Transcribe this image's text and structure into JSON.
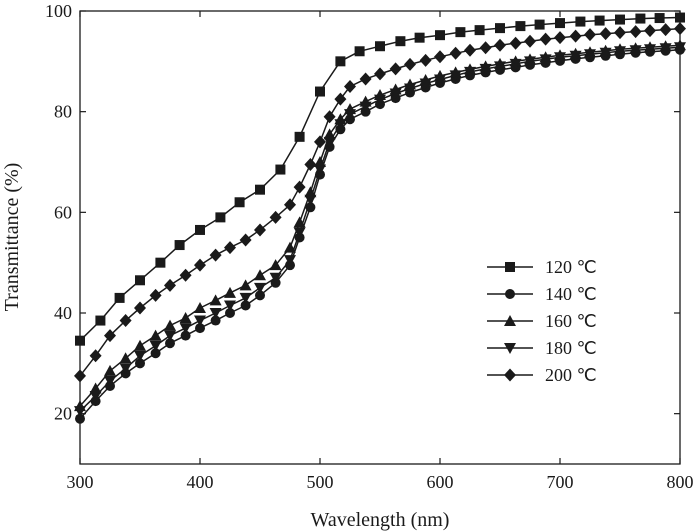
{
  "chart_data": {
    "type": "line",
    "xlabel": "Wavelength (nm)",
    "ylabel": "Transmittance (%)",
    "xlim": [
      300,
      800
    ],
    "ylim": [
      10,
      100
    ],
    "xticks": [
      300,
      400,
      500,
      600,
      700,
      800
    ],
    "yticks": [
      20,
      40,
      60,
      80,
      100
    ],
    "grid": false,
    "legend_position": "center-right",
    "series": [
      {
        "name": "120 ℃",
        "marker": "square",
        "x": [
          300,
          317,
          333,
          350,
          367,
          383,
          400,
          417,
          433,
          450,
          467,
          483,
          500,
          517,
          533,
          550,
          567,
          583,
          600,
          617,
          633,
          650,
          667,
          683,
          700,
          717,
          733,
          750,
          767,
          783,
          800
        ],
        "y": [
          34.5,
          38.5,
          43,
          46.5,
          50,
          53.5,
          56.5,
          59,
          62,
          64.5,
          68.5,
          75,
          84,
          90,
          92,
          93,
          94,
          94.7,
          95.2,
          95.8,
          96.2,
          96.6,
          97,
          97.3,
          97.6,
          97.9,
          98.1,
          98.3,
          98.5,
          98.6,
          98.7
        ]
      },
      {
        "name": "140 ℃",
        "marker": "circle",
        "x": [
          300,
          313,
          325,
          338,
          350,
          363,
          375,
          388,
          400,
          413,
          425,
          438,
          450,
          463,
          475,
          483,
          492,
          500,
          508,
          517,
          525,
          538,
          550,
          563,
          575,
          588,
          600,
          613,
          625,
          638,
          650,
          663,
          675,
          688,
          700,
          713,
          725,
          738,
          750,
          763,
          775,
          788,
          800
        ],
        "y": [
          19,
          22.5,
          25.5,
          28,
          30,
          32,
          34,
          35.5,
          37,
          38.5,
          40,
          41.5,
          43.5,
          46,
          49.5,
          55,
          61,
          67.5,
          73,
          76.5,
          78.5,
          80,
          81.5,
          82.7,
          83.8,
          84.8,
          85.7,
          86.5,
          87.2,
          87.8,
          88.3,
          88.8,
          89.3,
          89.7,
          90.1,
          90.5,
          90.8,
          91.1,
          91.4,
          91.7,
          91.9,
          92.1,
          92.3
        ]
      },
      {
        "name": "160 ℃",
        "marker": "triangle-up",
        "x": [
          300,
          313,
          325,
          338,
          350,
          363,
          375,
          388,
          400,
          413,
          425,
          438,
          450,
          463,
          475,
          483,
          492,
          500,
          508,
          517,
          525,
          538,
          550,
          563,
          575,
          588,
          600,
          613,
          625,
          638,
          650,
          663,
          675,
          688,
          700,
          713,
          725,
          738,
          750,
          763,
          775,
          788,
          800
        ],
        "y": [
          21.5,
          25,
          28.5,
          31,
          33.5,
          35.5,
          37.5,
          39,
          41,
          42.5,
          44,
          45.5,
          47.5,
          49.5,
          53,
          58,
          64,
          70,
          75.5,
          78.5,
          80.5,
          82,
          83.3,
          84.4,
          85.4,
          86.3,
          87.1,
          87.8,
          88.4,
          89,
          89.5,
          90,
          90.4,
          90.8,
          91.2,
          91.5,
          91.8,
          92.1,
          92.4,
          92.6,
          92.8,
          93,
          93.2
        ]
      },
      {
        "name": "180 ℃",
        "marker": "triangle-down",
        "x": [
          300,
          313,
          325,
          338,
          350,
          363,
          375,
          388,
          400,
          413,
          425,
          438,
          450,
          463,
          475,
          483,
          492,
          500,
          508,
          517,
          525,
          538,
          550,
          563,
          575,
          588,
          600,
          613,
          625,
          638,
          650,
          663,
          675,
          688,
          700,
          713,
          725,
          738,
          750,
          763,
          775,
          788,
          800
        ],
        "y": [
          20.5,
          23.5,
          26.5,
          29,
          31.5,
          33.5,
          35.5,
          37,
          38.5,
          40,
          41.5,
          43,
          45,
          47,
          50.5,
          56,
          62.5,
          68.5,
          74,
          77.5,
          79.5,
          81,
          82.4,
          83.6,
          84.6,
          85.6,
          86.4,
          87.2,
          87.9,
          88.5,
          89,
          89.5,
          90,
          90.4,
          90.8,
          91.1,
          91.4,
          91.7,
          92,
          92.2,
          92.4,
          92.6,
          92.8
        ]
      },
      {
        "name": "200 ℃",
        "marker": "diamond",
        "x": [
          300,
          313,
          325,
          338,
          350,
          363,
          375,
          388,
          400,
          413,
          425,
          438,
          450,
          463,
          475,
          483,
          492,
          500,
          508,
          517,
          525,
          538,
          550,
          563,
          575,
          588,
          600,
          613,
          625,
          638,
          650,
          663,
          675,
          688,
          700,
          713,
          725,
          738,
          750,
          763,
          775,
          788,
          800
        ],
        "y": [
          27.5,
          31.5,
          35.5,
          38.5,
          41,
          43.5,
          45.5,
          47.5,
          49.5,
          51.5,
          53,
          54.5,
          56.5,
          59,
          61.5,
          65,
          69.5,
          74,
          79,
          82.5,
          85,
          86.5,
          87.5,
          88.5,
          89.4,
          90.2,
          90.9,
          91.6,
          92.2,
          92.7,
          93.2,
          93.6,
          94,
          94.4,
          94.7,
          95,
          95.3,
          95.5,
          95.7,
          95.9,
          96.1,
          96.3,
          96.5
        ]
      }
    ]
  }
}
